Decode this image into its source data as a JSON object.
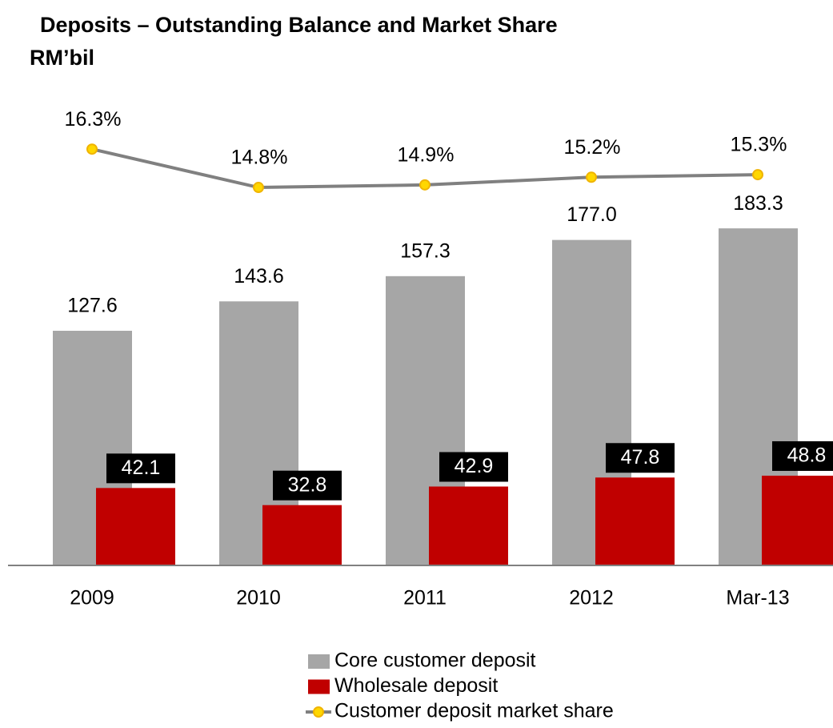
{
  "chart_data": {
    "type": "bar",
    "title": "Deposits – Outstanding  Balance and Market Share",
    "subtitle": "RM’bil",
    "categories": [
      "2009",
      "2010",
      "2011",
      "2012",
      "Mar-13"
    ],
    "ylim": [
      0,
      250
    ],
    "y2lim": [
      0,
      18
    ],
    "series": [
      {
        "name": "Core customer deposit",
        "type": "bar",
        "color": "#a6a6a6",
        "values": [
          127.6,
          143.6,
          157.3,
          177.0,
          183.3
        ],
        "value_labels": [
          "127.6",
          "143.6",
          "157.3",
          "177.0",
          "183.3"
        ]
      },
      {
        "name": "Wholesale deposit",
        "type": "bar",
        "color": "#c00000",
        "values": [
          42.1,
          32.8,
          42.9,
          47.8,
          48.8
        ],
        "value_labels": [
          "42.1",
          "32.8",
          "42.9",
          "47.8",
          "48.8"
        ]
      },
      {
        "name": "Customer deposit market share",
        "type": "line",
        "axis": "y2",
        "color": "#808080",
        "marker_color": "#ffd700",
        "values": [
          16.3,
          14.8,
          14.9,
          15.2,
          15.3
        ],
        "value_labels": [
          "16.3%",
          "14.8%",
          "14.9%",
          "15.2%",
          "15.3%"
        ]
      }
    ]
  }
}
